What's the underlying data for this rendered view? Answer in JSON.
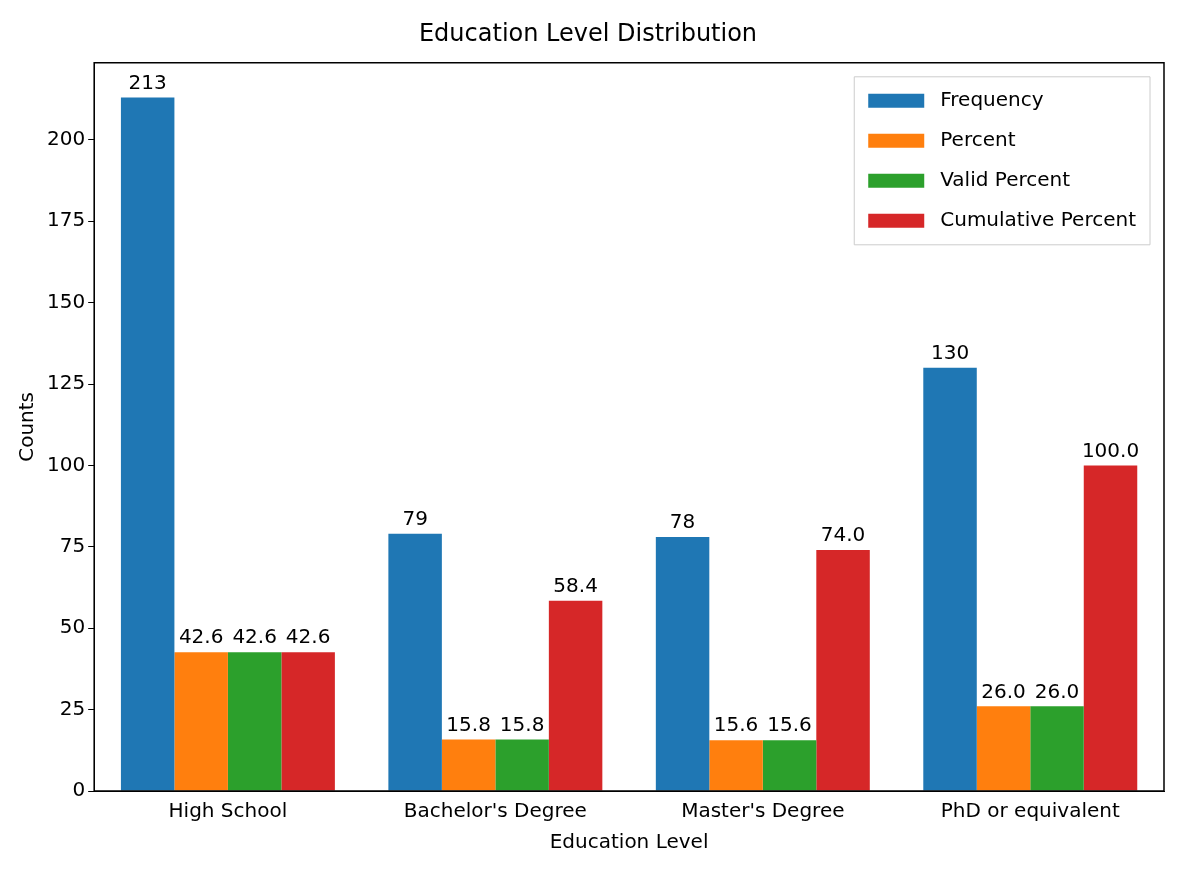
{
  "chart_data": {
    "type": "bar",
    "title": "Education Level Distribution",
    "xlabel": "Education Level",
    "ylabel": "Counts",
    "categories": [
      "High School",
      "Bachelor's Degree",
      "Master's Degree",
      "PhD or equivalent"
    ],
    "series": [
      {
        "name": "Frequency",
        "color": "#1f77b4",
        "values": [
          213,
          79,
          78,
          130
        ],
        "value_labels": [
          "213",
          "79",
          "78",
          "130"
        ]
      },
      {
        "name": "Percent",
        "color": "#ff7f0e",
        "values": [
          42.6,
          15.8,
          15.6,
          26.0
        ],
        "value_labels": [
          "42.6",
          "15.8",
          "15.6",
          "26.0"
        ]
      },
      {
        "name": "Valid Percent",
        "color": "#2ca02c",
        "values": [
          42.6,
          15.8,
          15.6,
          26.0
        ],
        "value_labels": [
          "42.6",
          "15.8",
          "15.6",
          "26.0"
        ]
      },
      {
        "name": "Cumulative Percent",
        "color": "#d62728",
        "values": [
          42.6,
          58.4,
          74.0,
          100.0
        ],
        "value_labels": [
          "42.6",
          "58.4",
          "74.0",
          "100.0"
        ]
      }
    ],
    "ylim": [
      0,
      223.65
    ],
    "yticks": [
      0,
      25,
      50,
      75,
      100,
      125,
      150,
      175,
      200
    ],
    "legend": "top right",
    "grid": false
  }
}
